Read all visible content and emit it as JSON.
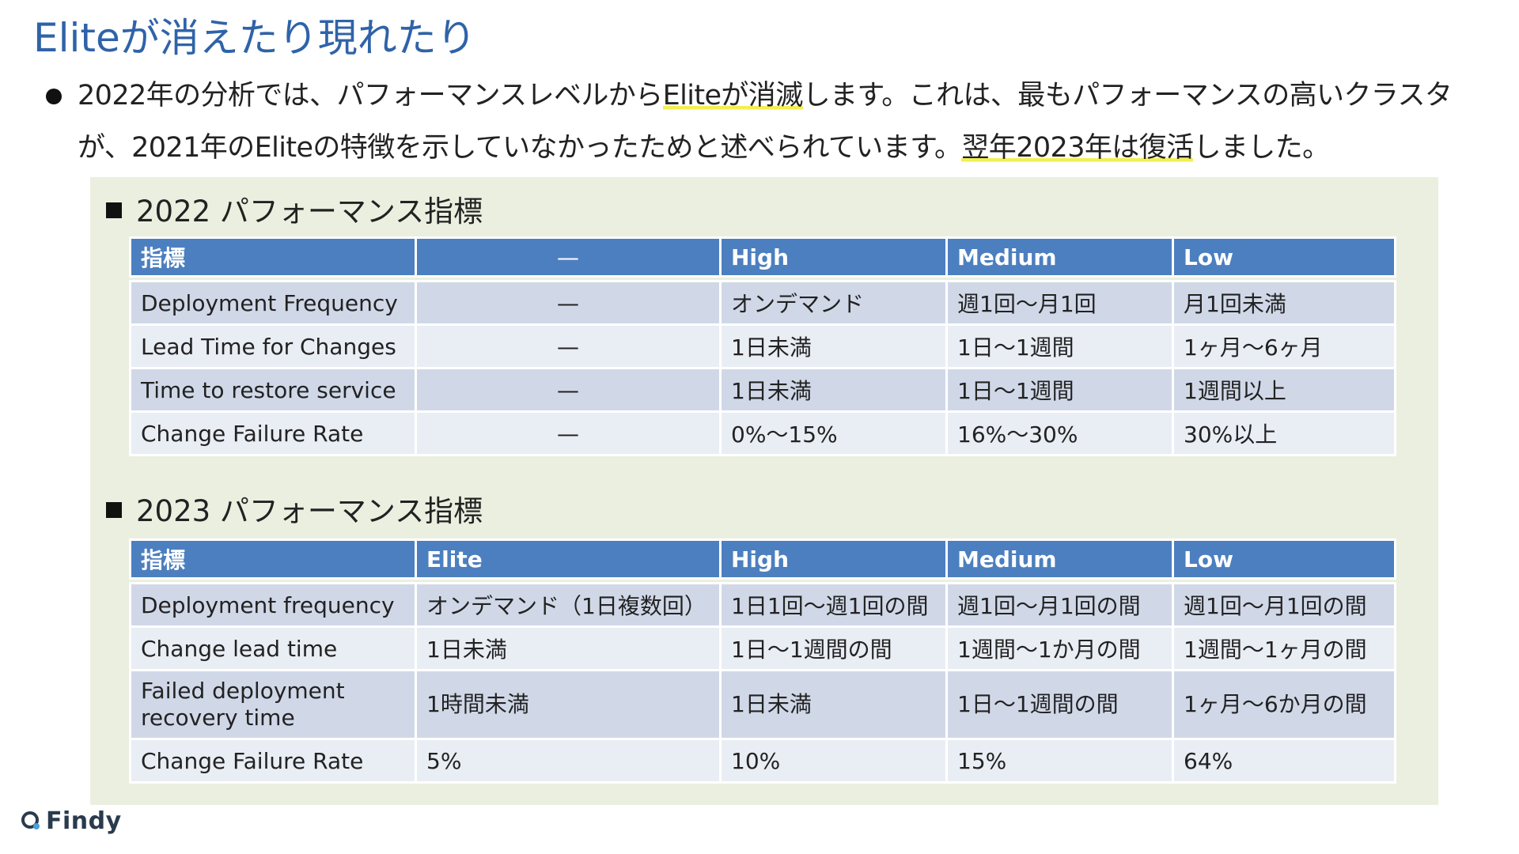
{
  "title": "Eliteが消えたり現れたり",
  "bullet": {
    "part1": "2022年の分析では、パフォーマンスレベルから",
    "highlight1": "Eliteが消滅",
    "part2": "します。これは、最もパフォーマンスの高いクラスタが、2021年のEliteの特徴を示していなかったためと述べられています。",
    "highlight2": "翌年2023年は復活",
    "part3": "しました。"
  },
  "section2022": {
    "heading": "2022 パフォーマンス指標",
    "headers": [
      "指標",
      "—",
      "High",
      "Medium",
      "Low"
    ],
    "rows": [
      [
        "Deployment Frequency",
        "—",
        "オンデマンド",
        "週1回〜月1回",
        "月1回未満"
      ],
      [
        "Lead Time for Changes",
        "—",
        "1日未満",
        "1日〜1週間",
        "1ヶ月〜6ヶ月"
      ],
      [
        "Time to restore service",
        "—",
        "1日未満",
        "1日〜1週間",
        "1週間以上"
      ],
      [
        "Change Failure Rate",
        "—",
        "0%〜15%",
        "16%〜30%",
        "30%以上"
      ]
    ]
  },
  "section2023": {
    "heading": "2023 パフォーマンス指標",
    "headers": [
      "指標",
      "Elite",
      "High",
      "Medium",
      "Low"
    ],
    "rows": [
      [
        "Deployment frequency",
        "オンデマンド（1日複数回）",
        "1日1回〜週1回の間",
        "週1回〜月1回の間",
        "週1回〜月1回の間"
      ],
      [
        "Change lead time",
        "1日未満",
        "1日〜1週間の間",
        "1週間〜1か月の間",
        "1週間〜1ヶ月の間"
      ],
      [
        "Failed deployment recovery time",
        "1時間未満",
        "1日未満",
        "1日〜1週間の間",
        "1ヶ月〜6か月の間"
      ],
      [
        "Change Failure Rate",
        "5%",
        "10%",
        "15%",
        "64%"
      ]
    ]
  },
  "logo": {
    "text": "Findy",
    "icon": "findy-logo-icon"
  },
  "colors": {
    "title": "#2f63a8",
    "table_header": "#4c7fbf",
    "row_odd": "#d0d8e8",
    "row_even": "#e9edf4",
    "panel": "#ebefe0",
    "highlight": "#f3ef52"
  }
}
